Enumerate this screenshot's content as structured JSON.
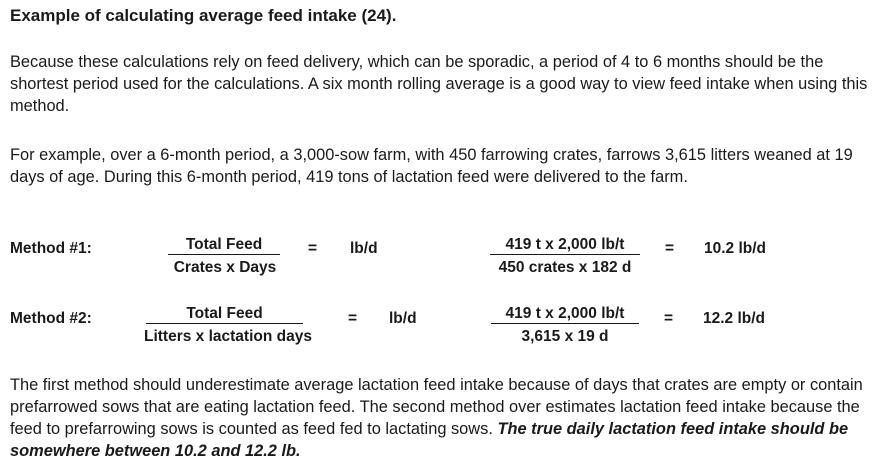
{
  "title": "Example of calculating average feed intake (24).",
  "paragraph1": "Because these calculations rely on feed delivery, which can be sporadic, a period of 4 to 6 months should be the shortest period used for the calculations. A six month rolling average is a good way to view feed intake when using this method.",
  "paragraph2": "For example, over a 6-month period, a 3,000-sow farm, with 450 farrowing crates, farrows 3,615 litters weaned at 19 days of age. During this 6-month period, 419 tons of lactation feed were delivered to the farm.",
  "method1": {
    "label": "Method #1:",
    "numerator": "Total Feed",
    "denominator": "Crates x Days",
    "equals1": "=",
    "unit": "lb/d",
    "calc_numerator": "419 t x 2,000 lb/t",
    "calc_denominator": "450 crates x 182 d",
    "equals2": "=",
    "result": "10.2 lb/d"
  },
  "method2": {
    "label": "Method #2:",
    "numerator": "Total Feed",
    "denominator": "Litters x lactation days",
    "equals1": "=",
    "unit": "lb/d",
    "calc_numerator": "419 t x 2,000 lb/t",
    "calc_denominator": "3,615 x 19 d",
    "equals2": "=",
    "result": "12.2 lb/d"
  },
  "paragraph3": {
    "text": "The first method should underestimate average lactation feed intake because of days that crates are empty or contain prefarrowed sows that are eating lactation feed. The second method over estimates lactation feed intake because the feed to prefarrowing sows is counted as feed fed to lactating sows. ",
    "emphasis": "The true daily lactation feed intake should be somewhere between 10.2 and 12.2 lb."
  }
}
